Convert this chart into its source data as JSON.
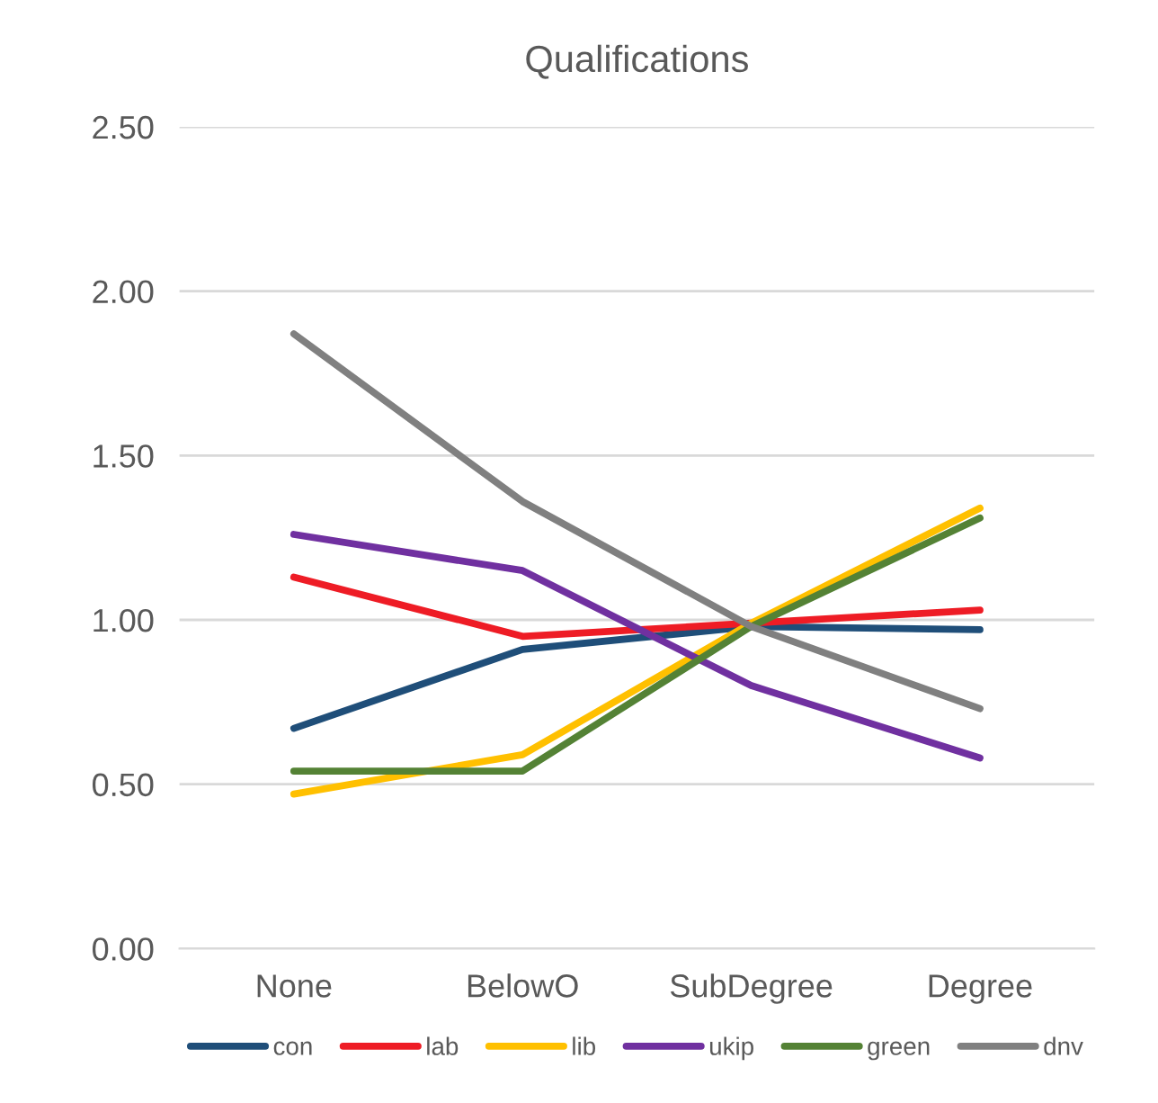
{
  "chart_data": {
    "type": "line",
    "title": "Qualifications",
    "categories": [
      "None",
      "BelowO",
      "SubDegree",
      "Degree"
    ],
    "series": [
      {
        "name": "con",
        "color": "#1f4e79",
        "values": [
          0.67,
          0.91,
          0.98,
          0.97
        ]
      },
      {
        "name": "lab",
        "color": "#ee1c25",
        "values": [
          1.13,
          0.95,
          0.99,
          1.03
        ]
      },
      {
        "name": "lib",
        "color": "#ffc000",
        "values": [
          0.47,
          0.59,
          0.99,
          1.34
        ]
      },
      {
        "name": "ukip",
        "color": "#7030a0",
        "values": [
          1.26,
          1.15,
          0.8,
          0.58
        ]
      },
      {
        "name": "green",
        "color": "#548235",
        "values": [
          0.54,
          0.54,
          0.98,
          1.31
        ]
      },
      {
        "name": "dnv",
        "color": "#808080",
        "values": [
          1.87,
          1.36,
          0.98,
          0.73
        ]
      }
    ],
    "ylim": [
      0,
      2.5
    ],
    "yticks": [
      {
        "value": 0,
        "label": "0.00"
      },
      {
        "value": 0.5,
        "label": "0.50"
      },
      {
        "value": 1,
        "label": "1.00"
      },
      {
        "value": 1.5,
        "label": "1.50"
      },
      {
        "value": 2,
        "label": "2.00"
      },
      {
        "value": 2.5,
        "label": "2.50"
      }
    ],
    "grid": "y",
    "legend": "bottom",
    "marker": "none",
    "line_style": "solid"
  }
}
